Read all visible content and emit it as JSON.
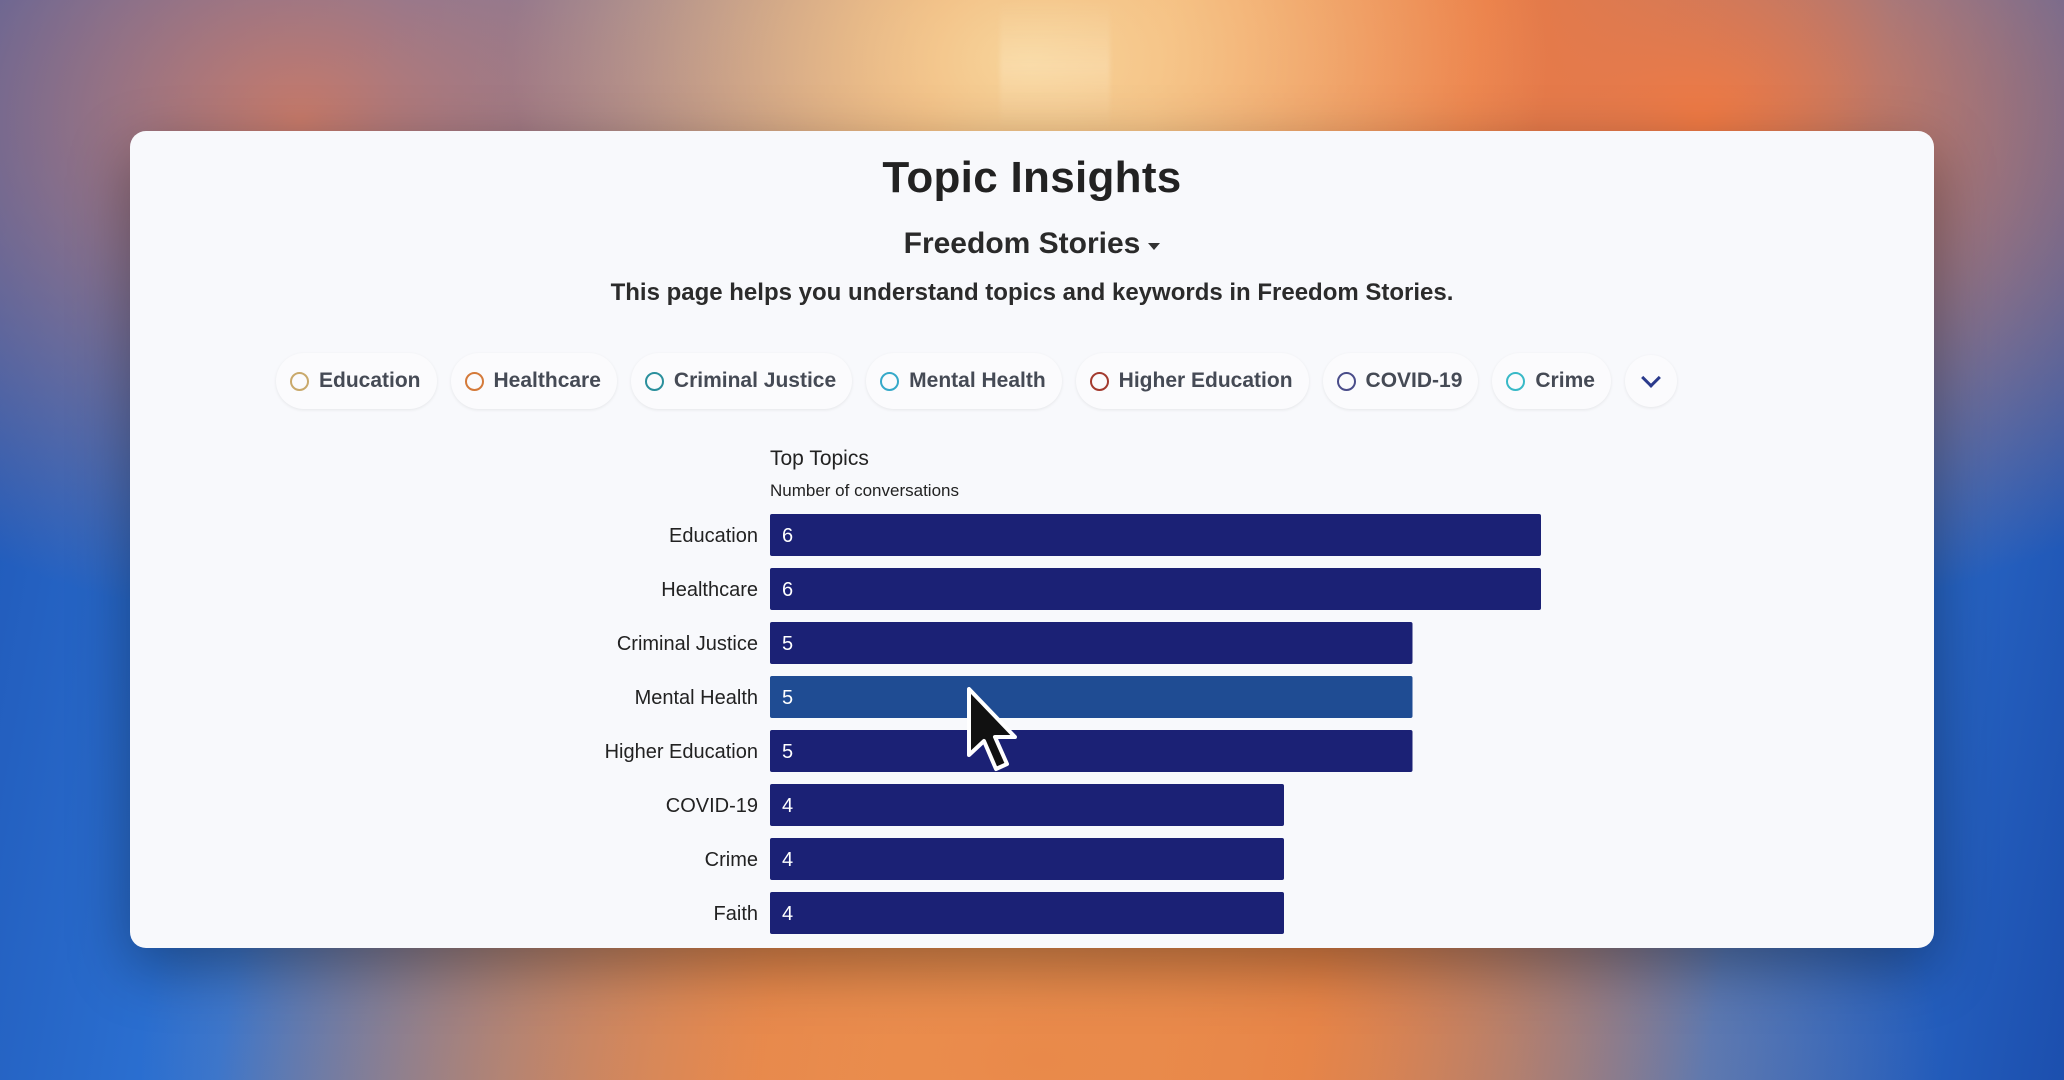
{
  "page": {
    "title": "Topic Insights",
    "dataset_selector": "Freedom Stories",
    "description": "This page helps you understand topics and keywords in Freedom Stories."
  },
  "topic_chips": [
    {
      "label": "Education",
      "color": "#c9a96b"
    },
    {
      "label": "Healthcare",
      "color": "#d47a3a"
    },
    {
      "label": "Criminal Justice",
      "color": "#2a8f9c"
    },
    {
      "label": "Mental Health",
      "color": "#35a9c9"
    },
    {
      "label": "Higher Education",
      "color": "#a33a2e"
    },
    {
      "label": "COVID-19",
      "color": "#4a4d8a"
    },
    {
      "label": "Crime",
      "color": "#38b9c7"
    }
  ],
  "expand_icon": "chevron-down-icon",
  "chart_data": {
    "type": "bar",
    "orientation": "horizontal",
    "title": "Top Topics",
    "subtitle": "Number of conversations",
    "categories": [
      "Education",
      "Healthcare",
      "Criminal Justice",
      "Mental Health",
      "Higher Education",
      "COVID-19",
      "Crime",
      "Faith"
    ],
    "values": [
      6,
      6,
      5,
      5,
      5,
      4,
      4,
      4
    ],
    "highlighted": "Mental Health",
    "bar_color": "#1b2175",
    "highlight_color": "#1f4c93"
  }
}
